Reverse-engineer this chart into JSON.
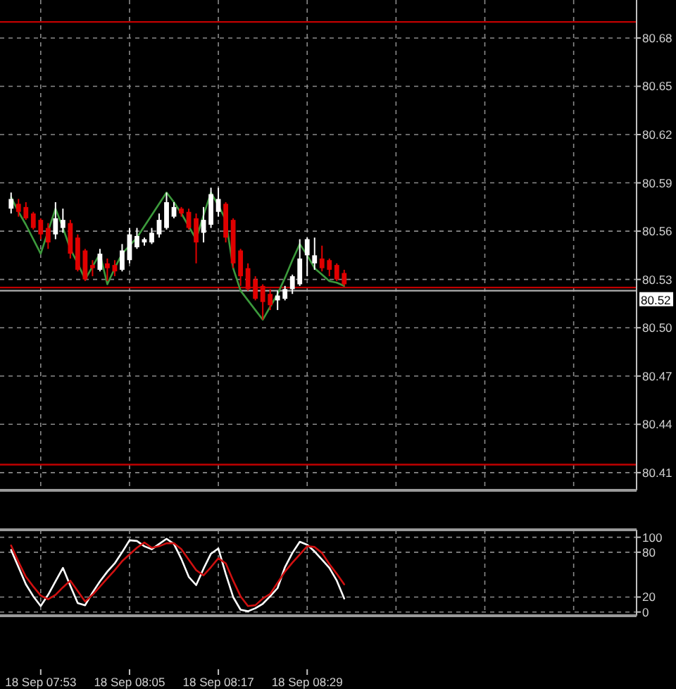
{
  "chart_data": [
    {
      "type": "candlestick",
      "ylim": [
        80.399,
        80.7036
      ],
      "yticks": [
        80.68,
        80.65,
        80.62,
        80.59,
        80.56,
        80.53,
        {
          "value": 80.5,
          "label": "80.50"
        },
        80.47,
        80.44,
        80.41
      ],
      "tick_labels": "y",
      "grid": true,
      "categories": [
        null,
        null,
        null,
        null,
        null,
        null,
        null,
        null,
        null,
        null,
        null,
        null,
        null,
        null,
        null,
        null,
        null,
        null,
        null,
        null,
        null,
        null,
        null,
        null,
        null,
        null,
        null,
        null,
        null,
        null,
        null,
        null,
        null,
        null,
        null,
        null,
        null,
        null,
        null,
        null,
        null,
        null,
        null,
        null,
        null,
        null,
        null,
        null,
        null,
        null,
        null,
        null,
        null,
        null,
        null,
        null,
        null,
        null,
        null,
        null,
        null,
        null,
        null,
        null,
        null,
        null,
        null,
        null,
        null,
        null,
        null,
        null,
        null,
        null,
        null,
        null,
        null,
        null,
        null,
        null,
        null,
        null,
        null,
        null,
        null
      ],
      "ohlc": [
        [
          80.574,
          80.584,
          80.571,
          80.58
        ],
        [
          80.577,
          80.58,
          80.569,
          80.572
        ],
        [
          80.575,
          80.578,
          80.567,
          80.568
        ],
        [
          80.571,
          80.572,
          80.561,
          80.562
        ],
        [
          80.567,
          80.568,
          80.555,
          80.558
        ],
        [
          80.562,
          80.565,
          80.549,
          80.553
        ],
        [
          80.558,
          80.578,
          80.555,
          80.568
        ],
        [
          80.562,
          80.574,
          80.559,
          80.567
        ],
        [
          80.565,
          80.567,
          80.543,
          80.546
        ],
        [
          80.556,
          80.558,
          80.535,
          80.536
        ],
        [
          80.548,
          80.549,
          80.529,
          80.53
        ],
        [
          80.539,
          80.542,
          80.532,
          80.537
        ],
        [
          80.536,
          80.549,
          80.535,
          80.546
        ],
        [
          80.54,
          80.543,
          80.529,
          80.537
        ],
        [
          80.539,
          80.542,
          80.532,
          80.535
        ],
        [
          80.536,
          80.552,
          80.535,
          80.548
        ],
        [
          80.542,
          80.562,
          80.54,
          80.558
        ],
        [
          80.55,
          80.562,
          80.549,
          80.557
        ],
        [
          80.553,
          80.556,
          80.551,
          80.555
        ],
        [
          80.553,
          80.562,
          80.552,
          80.559
        ],
        [
          80.558,
          80.571,
          80.556,
          80.567
        ],
        [
          80.562,
          80.584,
          80.561,
          80.578
        ],
        [
          80.569,
          80.578,
          80.568,
          80.575
        ],
        [
          80.574,
          80.575,
          80.569,
          80.571
        ],
        [
          80.572,
          80.574,
          80.561,
          80.562
        ],
        [
          80.568,
          80.571,
          80.54,
          80.553
        ],
        [
          80.559,
          80.575,
          80.553,
          80.567
        ],
        [
          80.564,
          80.587,
          80.562,
          80.583
        ],
        [
          80.572,
          80.587,
          80.569,
          80.58
        ],
        [
          80.577,
          80.578,
          80.553,
          80.556
        ],
        [
          80.567,
          80.568,
          80.537,
          80.54
        ],
        [
          80.548,
          80.549,
          80.526,
          80.532
        ],
        [
          80.537,
          80.54,
          80.523,
          80.524
        ],
        [
          80.53,
          80.532,
          80.517,
          80.518
        ],
        [
          80.526,
          80.527,
          80.505,
          80.516
        ],
        [
          80.521,
          80.524,
          80.511,
          80.514
        ],
        [
          80.517,
          80.523,
          80.511,
          80.52
        ],
        [
          80.518,
          80.526,
          80.517,
          80.524
        ],
        [
          80.524,
          80.533,
          80.521,
          80.532
        ],
        [
          80.527,
          80.555,
          80.526,
          80.543
        ],
        [
          80.545,
          80.556,
          80.532,
          80.555
        ],
        [
          80.54,
          80.556,
          80.536,
          80.545
        ],
        [
          80.543,
          80.551,
          80.535,
          80.537
        ],
        [
          80.542,
          80.543,
          80.532,
          80.536
        ],
        [
          80.539,
          80.54,
          80.529,
          80.53
        ],
        [
          80.534,
          80.536,
          80.526,
          80.527
        ],
        null,
        null,
        null,
        null,
        null,
        null,
        null,
        null,
        null,
        null,
        null,
        null,
        null,
        null,
        null,
        null,
        null,
        null,
        null,
        null,
        null,
        null,
        null,
        null,
        null,
        null,
        null,
        null,
        null,
        null,
        null,
        null,
        null,
        null,
        null,
        null,
        null,
        null,
        null
      ],
      "colors": [
        "#ffffff",
        "#e00000",
        "#e00000",
        "#e00000",
        "#e00000",
        "#e00000",
        "#ffffff",
        "#ffffff",
        "#e00000",
        "#e00000",
        "#e00000",
        "#e00000",
        "#ffffff",
        "#e00000",
        "#e00000",
        "#ffffff",
        "#ffffff",
        "#ffffff",
        "#ffffff",
        "#ffffff",
        "#ffffff",
        "#ffffff",
        "#ffffff",
        "#e00000",
        "#e00000",
        "#e00000",
        "#ffffff",
        "#ffffff",
        "#ffffff",
        "#e00000",
        "#e00000",
        "#e00000",
        "#e00000",
        "#e00000",
        "#e00000",
        "#e00000",
        "#ffffff",
        "#ffffff",
        "#ffffff",
        "#ffffff",
        "#ffffff",
        "#ffffff",
        "#e00000",
        "#e00000",
        "#e00000",
        "#e00000",
        null,
        null,
        null,
        null,
        null,
        null,
        null,
        null,
        null,
        null,
        null,
        null,
        null,
        null,
        null,
        null,
        null,
        null,
        null,
        null,
        null,
        null,
        null,
        null,
        null,
        null,
        null,
        null,
        null,
        null,
        null,
        null,
        null,
        null,
        null,
        null,
        null,
        null,
        null
      ],
      "series": [
        {
          "type": "line",
          "color": "#3c9a3c",
          "values": [
            80.581,
            80.572,
            80.564,
            80.555,
            80.546,
            80.56,
            80.574,
            80.562,
            80.549,
            80.54,
            80.53,
            80.538,
            80.546,
            80.527,
            80.537,
            80.546,
            80.551,
            80.556,
            80.563,
            80.57,
            80.577,
            80.584,
            80.578,
            80.571,
            80.563,
            80.555,
            80.57,
            80.584,
            80.576,
            80.567,
            80.537,
            80.523,
            80.517,
            80.511,
            80.505,
            80.513,
            80.521,
            80.531,
            80.542,
            80.552,
            80.545,
            80.537,
            80.533,
            80.529,
            80.528,
            80.526,
            null,
            null,
            null,
            null,
            null,
            null,
            null,
            null,
            null,
            null,
            null,
            null,
            null,
            null,
            null,
            null,
            null,
            null,
            null,
            null,
            null,
            null,
            null,
            null,
            null,
            null,
            null,
            null,
            null,
            null,
            null,
            null,
            null,
            null,
            null,
            null,
            null,
            null,
            null
          ]
        }
      ],
      "ref_lines": [
        {
          "axis": "y",
          "value": 80.69,
          "color": "#c00000"
        },
        {
          "axis": "y",
          "value": 80.525,
          "color": "#c00000"
        },
        {
          "axis": "y",
          "value": 80.523,
          "label": "80.52",
          "color": "#b0b0b0"
        },
        {
          "axis": "y",
          "value": 80.415,
          "color": "#c00000"
        }
      ]
    },
    {
      "type": "line",
      "ylim": [
        -5,
        110
      ],
      "yticks": [
        100,
        80,
        20,
        0
      ],
      "grid": true,
      "categories": [
        null,
        null,
        null,
        null,
        "18 Sep 07:53",
        null,
        null,
        null,
        null,
        null,
        null,
        null,
        null,
        null,
        null,
        null,
        "18 Sep 08:05",
        null,
        null,
        null,
        null,
        null,
        null,
        null,
        null,
        null,
        null,
        null,
        "18 Sep 08:17",
        null,
        null,
        null,
        null,
        null,
        null,
        null,
        null,
        null,
        null,
        null,
        "18 Sep 08:29",
        null,
        null,
        null,
        null,
        null,
        null,
        null,
        null,
        null,
        null,
        null,
        null,
        null,
        null,
        null,
        null,
        null,
        null,
        null,
        null,
        null,
        null,
        null,
        null,
        null,
        null,
        null,
        null,
        null,
        null,
        null,
        null,
        null,
        null,
        null,
        null,
        null,
        null,
        null,
        null,
        null,
        null,
        null,
        null
      ],
      "series": [
        {
          "color": "#ffffff",
          "values": [
            83,
            60,
            37,
            21,
            8,
            23,
            41,
            59,
            35,
            12,
            9,
            26,
            41,
            54,
            65,
            80,
            96,
            95,
            88,
            84,
            91,
            98,
            91,
            71,
            47,
            36,
            58,
            78,
            85,
            51,
            20,
            3,
            1,
            5,
            11,
            21,
            32,
            60,
            79,
            94,
            90,
            81,
            70,
            59,
            42,
            18,
            null,
            null,
            null,
            null,
            null,
            null,
            null,
            null,
            null,
            null,
            null,
            null,
            null,
            null,
            null,
            null,
            null,
            null,
            null,
            null,
            null,
            null,
            null,
            null,
            null,
            null,
            null,
            null,
            null,
            null,
            null,
            null,
            null,
            null,
            null,
            null,
            null,
            null,
            null
          ]
        },
        {
          "color": "#d01010",
          "values": [
            89,
            67,
            47,
            34,
            22,
            17,
            23,
            33,
            42,
            28,
            14,
            23,
            34,
            45,
            56,
            68,
            77,
            86,
            93,
            86,
            88,
            92,
            92,
            84,
            70,
            56,
            49,
            60,
            72,
            65,
            42,
            21,
            8,
            9,
            18,
            24,
            39,
            54,
            66,
            77,
            88,
            87,
            79,
            64,
            51,
            37,
            null,
            null,
            null,
            null,
            null,
            null,
            null,
            null,
            null,
            null,
            null,
            null,
            null,
            null,
            null,
            null,
            null,
            null,
            null,
            null,
            null,
            null,
            null,
            null,
            null,
            null,
            null,
            null,
            null,
            null,
            null,
            null,
            null,
            null,
            null,
            null,
            null,
            null,
            null
          ]
        }
      ]
    }
  ]
}
